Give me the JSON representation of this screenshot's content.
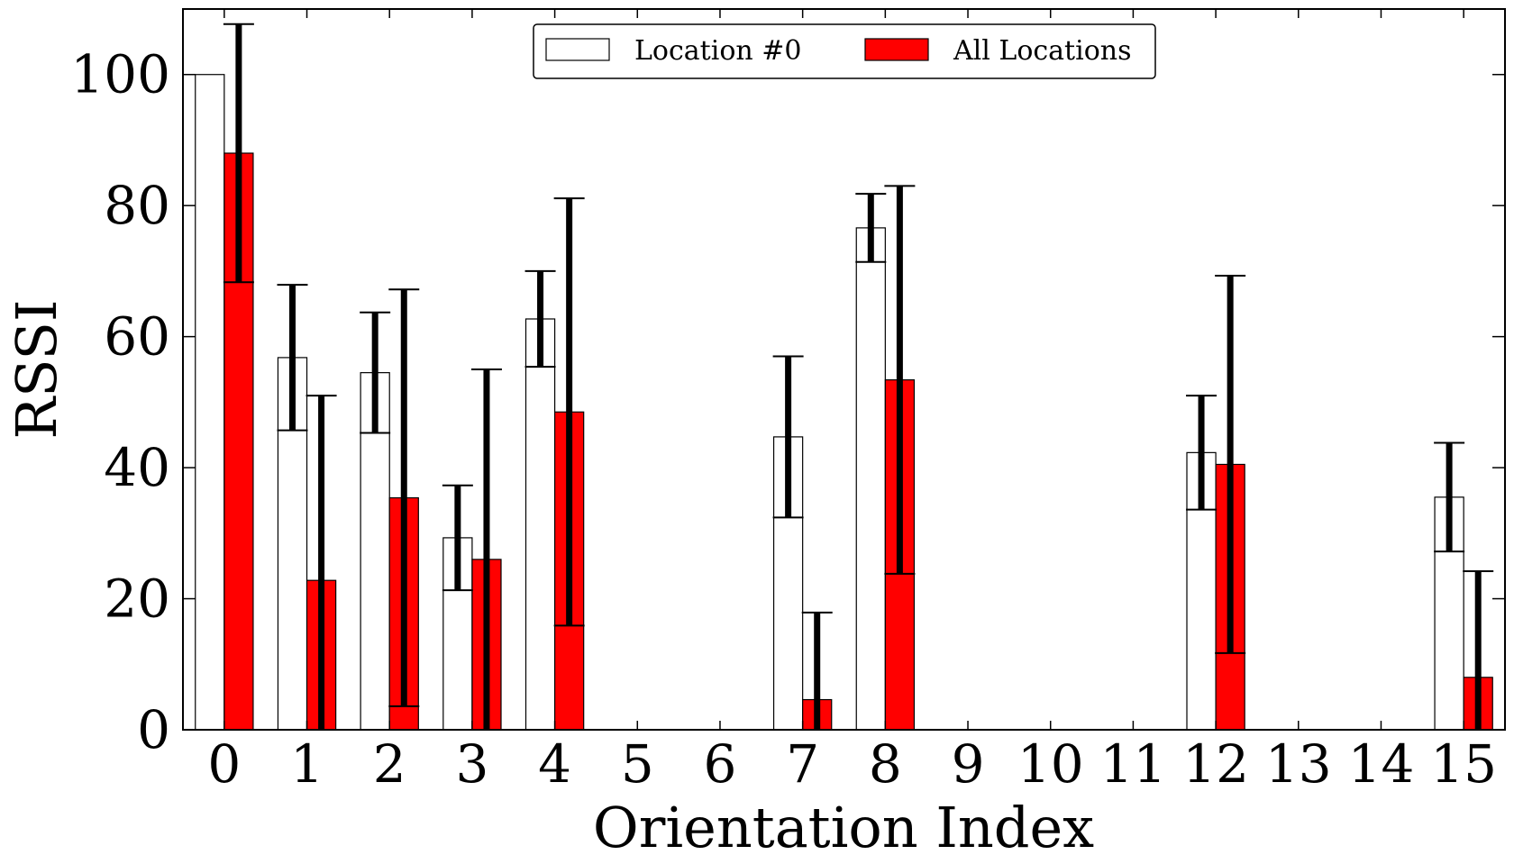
{
  "chart_data": {
    "type": "bar",
    "xlabel": "Orientation Index",
    "ylabel": "RSSI",
    "categories": [
      "0",
      "1",
      "2",
      "3",
      "4",
      "5",
      "6",
      "7",
      "8",
      "9",
      "10",
      "11",
      "12",
      "13",
      "14",
      "15"
    ],
    "yticks": [
      "0",
      "20",
      "40",
      "60",
      "80",
      "100"
    ],
    "ylim": [
      0,
      110
    ],
    "grid": false,
    "legend": "top-center",
    "series": [
      {
        "name": "Location #0",
        "color": "#ffffff",
        "values": [
          100,
          56.8,
          54.5,
          29.3,
          62.7,
          0,
          0,
          44.7,
          76.6,
          0,
          0,
          0,
          42.3,
          0,
          0,
          35.5
        ],
        "error": [
          0,
          11.1,
          9.2,
          8.0,
          7.3,
          0,
          0,
          12.3,
          5.2,
          0,
          0,
          0,
          8.7,
          0,
          0,
          8.3
        ]
      },
      {
        "name": "All Locations",
        "color": "#ff0000",
        "values": [
          88,
          22.8,
          35.4,
          26,
          48.5,
          0,
          0,
          4.6,
          53.4,
          0,
          0,
          0,
          40.5,
          0,
          0,
          8
        ],
        "error": [
          19.7,
          28.2,
          31.8,
          29.0,
          32.6,
          0,
          0,
          13.3,
          29.6,
          0,
          0,
          0,
          28.8,
          0,
          0,
          16.2
        ]
      }
    ]
  }
}
